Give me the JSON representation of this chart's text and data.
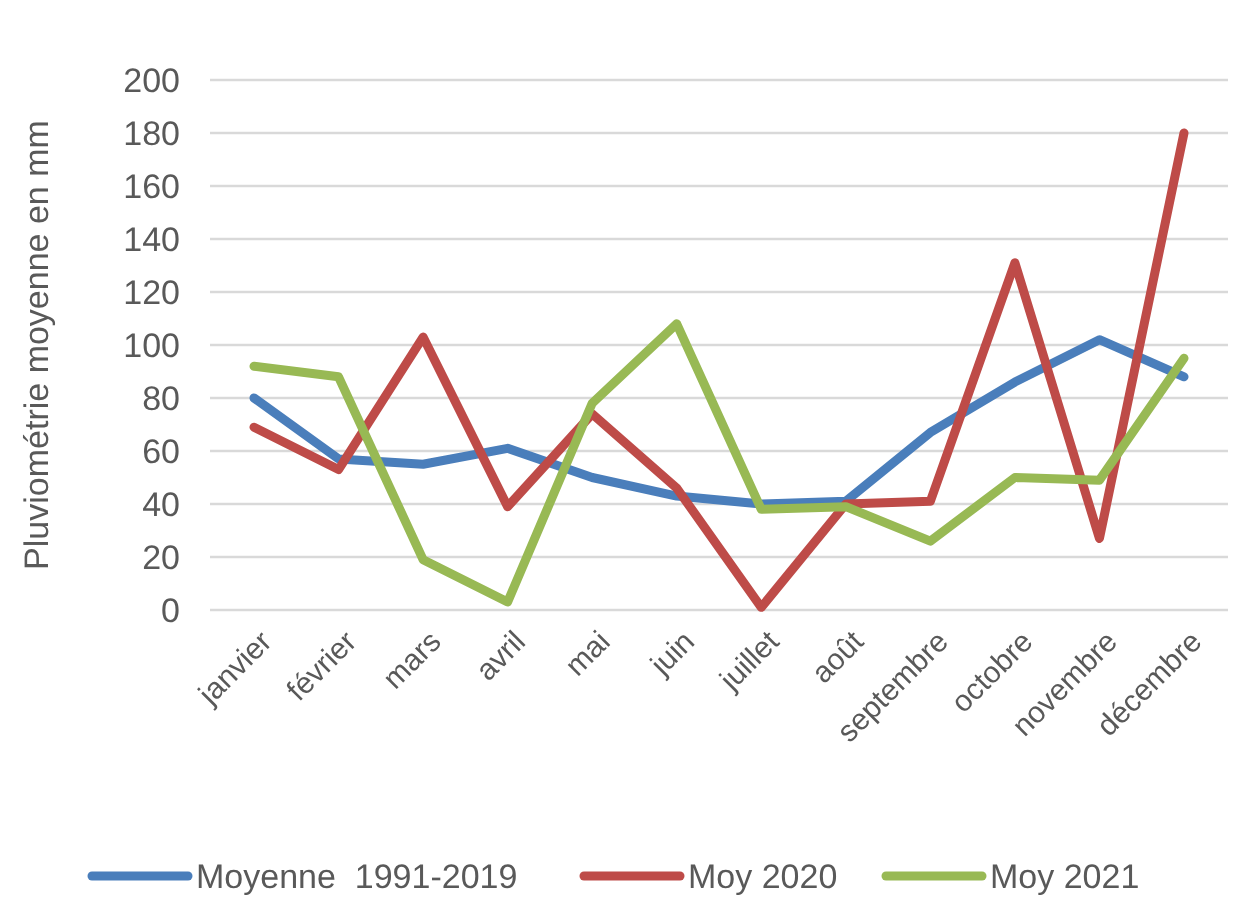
{
  "chart_data": {
    "type": "line",
    "ylabel": "Pluviométrie moyenne en mm",
    "categories": [
      "janvier",
      "février",
      "mars",
      "avril",
      "mai",
      "juin",
      "juillet",
      "août",
      "septembre",
      "octobre",
      "novembre",
      "décembre"
    ],
    "series": [
      {
        "name": "Moyenne  1991-2019",
        "color": "#4a7ebb",
        "values": [
          80,
          57,
          55,
          61,
          50,
          43,
          40,
          41,
          67,
          86,
          102,
          88
        ]
      },
      {
        "name": "Moy 2020",
        "color": "#be4b48",
        "values": [
          69,
          53,
          103,
          39,
          74,
          46,
          1,
          40,
          41,
          131,
          27,
          180
        ]
      },
      {
        "name": "Moy 2021",
        "color": "#98b954",
        "values": [
          92,
          88,
          19,
          3,
          78,
          108,
          38,
          39,
          26,
          50,
          49,
          95
        ]
      }
    ],
    "ylim": [
      0,
      200
    ],
    "yticks": [
      0,
      20,
      40,
      60,
      80,
      100,
      120,
      140,
      160,
      180,
      200
    ],
    "grid": "y",
    "legend": "bottom",
    "marker": "none",
    "line_style": "solid"
  }
}
